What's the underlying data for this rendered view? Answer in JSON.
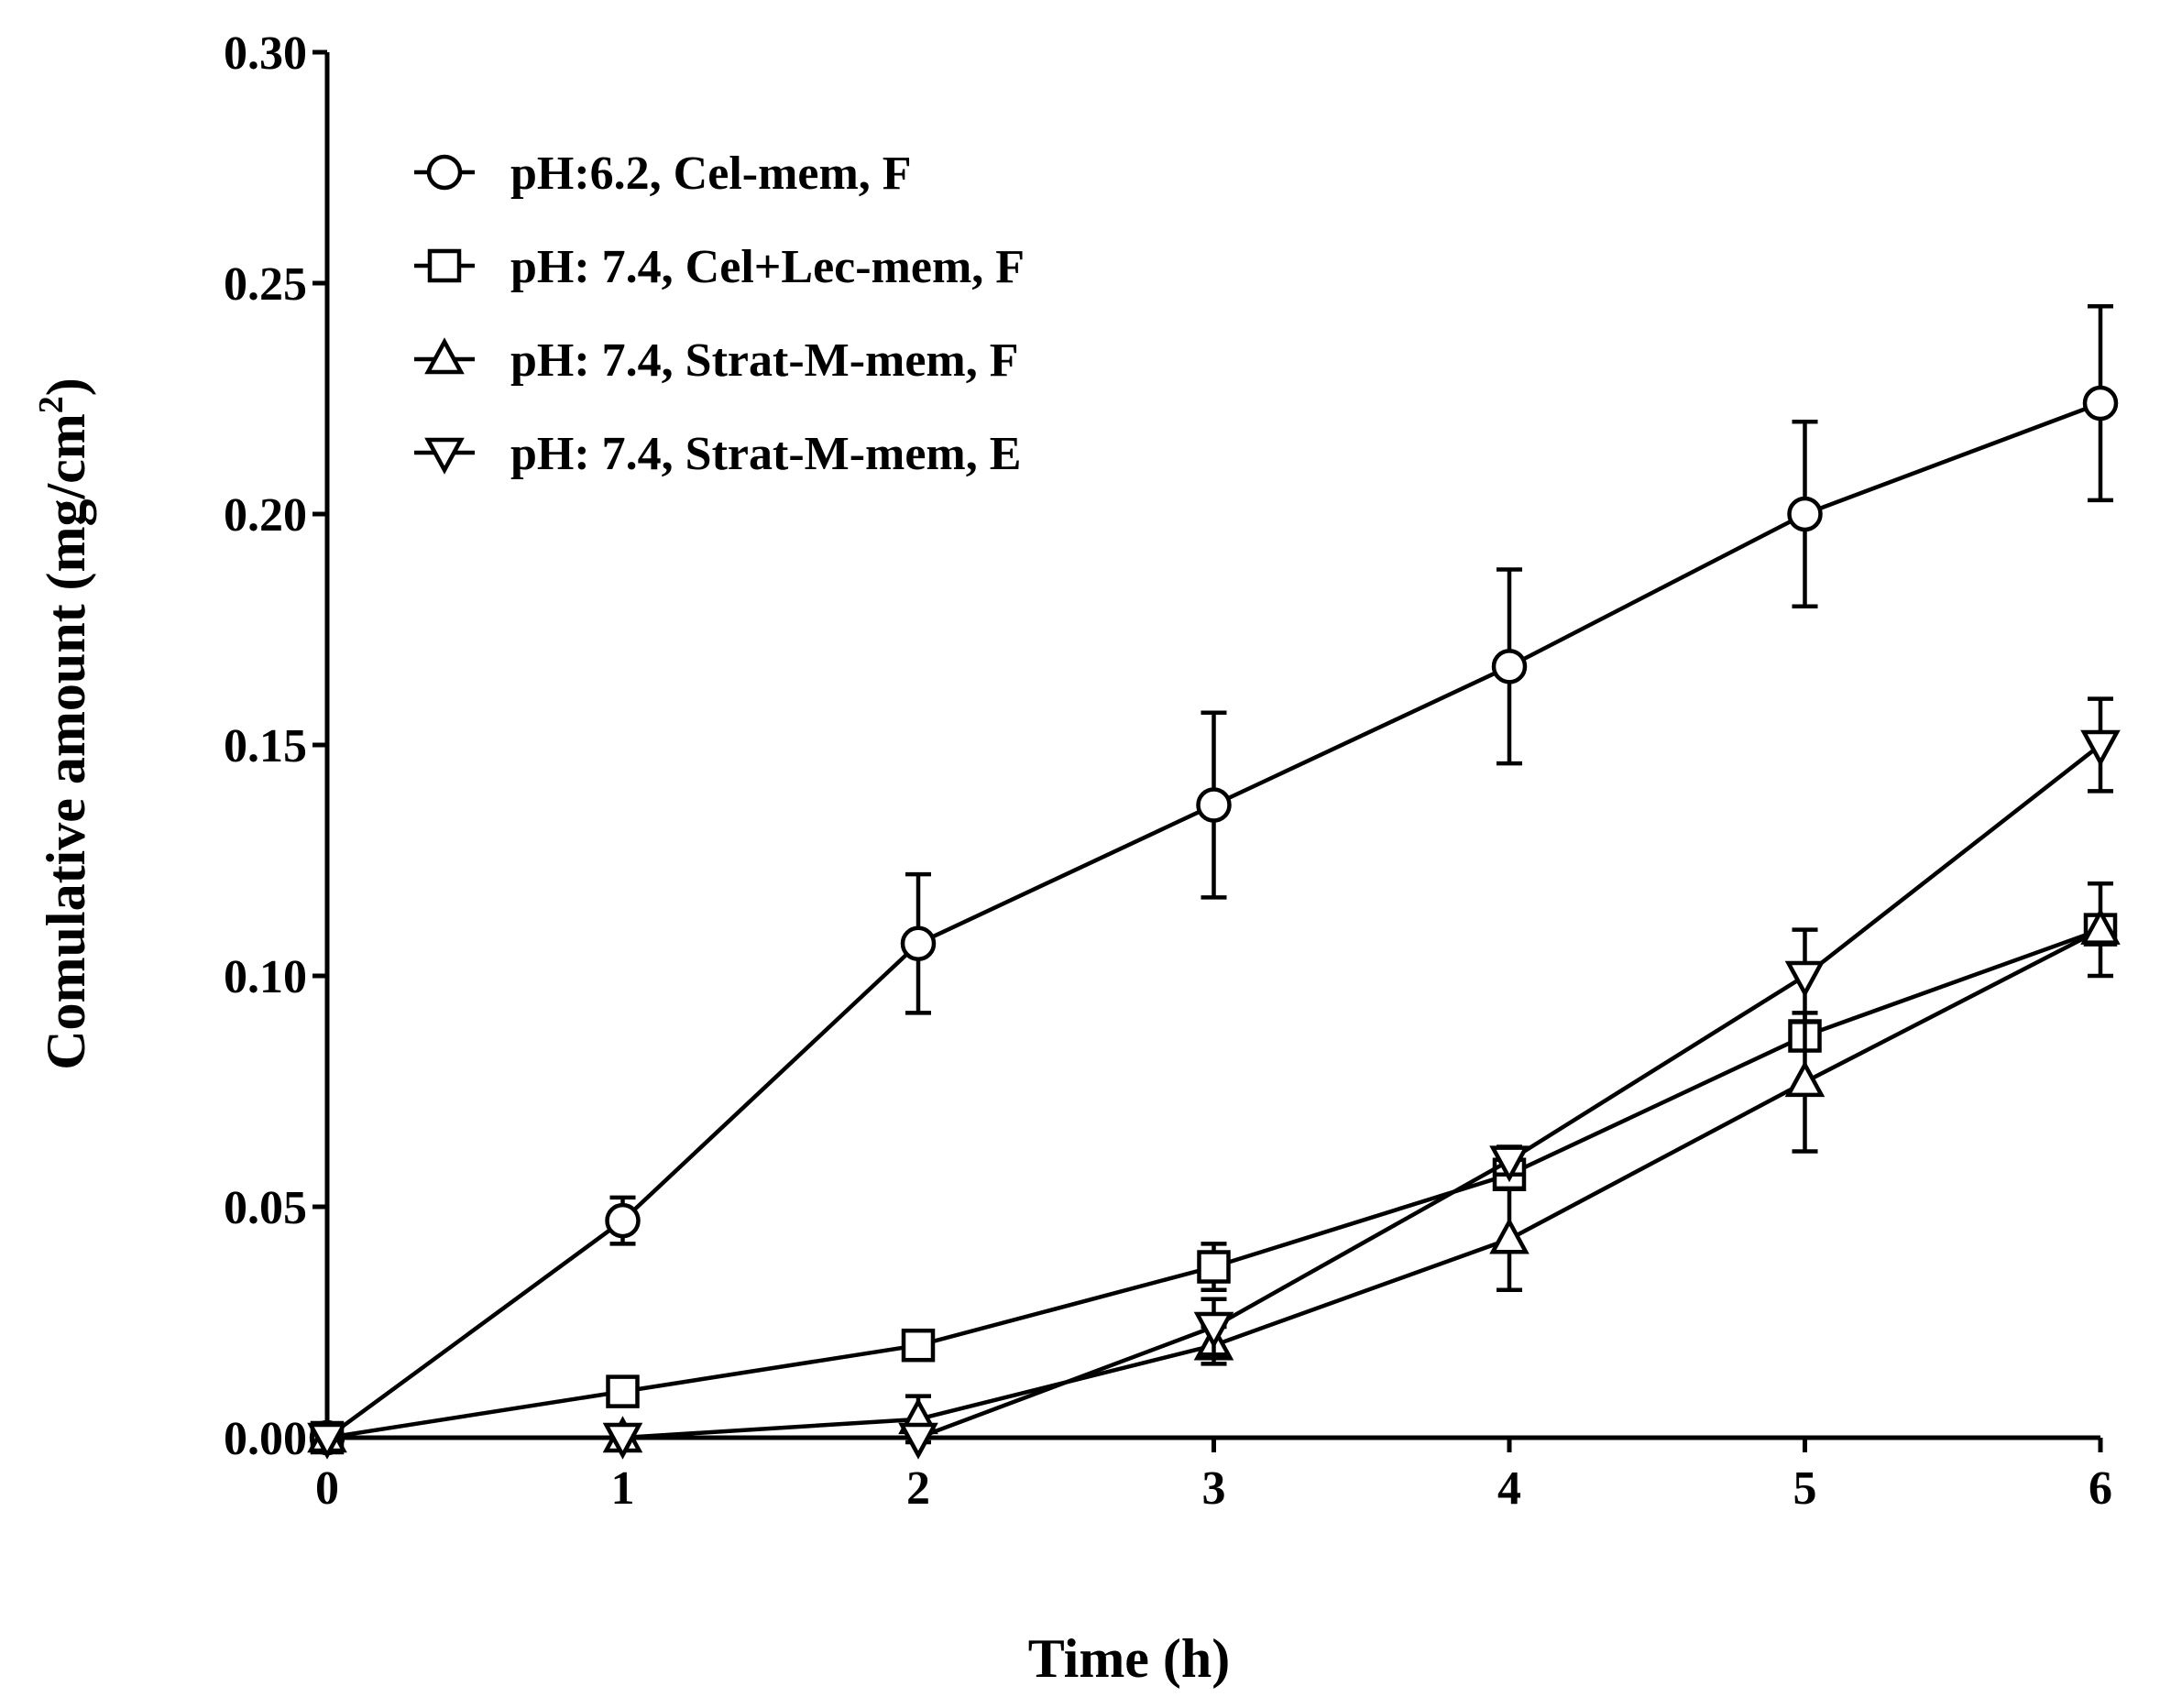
{
  "chart_data": {
    "type": "line",
    "xlabel": "Time (h)",
    "ylabel": "Comulative amount (mg/cm",
    "ylabel_superscript": "2",
    "ylabel_suffix": ")",
    "xlim": [
      0,
      6
    ],
    "ylim": [
      0,
      0.3
    ],
    "x_ticks": [
      "0",
      "1",
      "2",
      "3",
      "4",
      "5",
      "6"
    ],
    "y_ticks": [
      "0.00",
      "0.05",
      "0.10",
      "0.15",
      "0.20",
      "0.25",
      "0.30"
    ],
    "grid": false,
    "legend_position": "top-left",
    "x": [
      0,
      1,
      2,
      3,
      4,
      5,
      6
    ],
    "series": [
      {
        "name": "pH:6.2, Cel-mem, F",
        "marker": "circle",
        "values": [
          0.0,
          0.047,
          0.107,
          0.137,
          0.167,
          0.2,
          0.224
        ],
        "errors": [
          0.0,
          0.005,
          0.015,
          0.02,
          0.021,
          0.02,
          0.021
        ]
      },
      {
        "name": "pH: 7.4, Cel+Lec-mem, F",
        "marker": "square",
        "values": [
          0.0,
          0.01,
          0.02,
          0.037,
          0.057,
          0.087,
          0.11
        ],
        "errors": [
          0.0,
          0.001,
          0.001,
          0.005,
          0.003,
          0.003,
          0.003
        ]
      },
      {
        "name": "pH: 7.4, Strat-M-mem, F",
        "marker": "triangle-up",
        "values": [
          0.0,
          0.0,
          0.004,
          0.02,
          0.043,
          0.077,
          0.11
        ],
        "errors": [
          0.0,
          0.0,
          0.005,
          0.004,
          0.011,
          0.015,
          0.01
        ]
      },
      {
        "name": "pH: 7.4, Strat-M-mem, E",
        "marker": "triangle-down",
        "values": [
          0.0,
          0.0,
          0.0,
          0.024,
          0.06,
          0.1,
          0.15
        ],
        "errors": [
          0.0,
          0.0,
          0.0,
          0.006,
          0.003,
          0.01,
          0.01
        ]
      }
    ]
  }
}
